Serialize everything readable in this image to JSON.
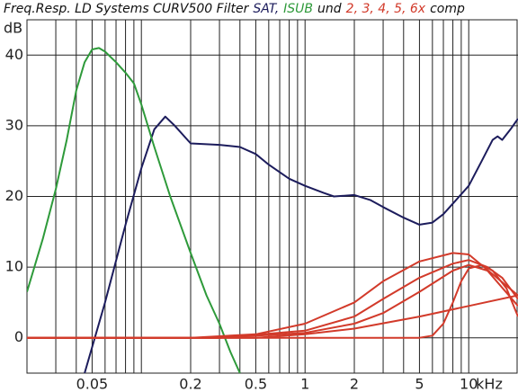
{
  "chart_data": {
    "type": "line",
    "title_parts": [
      {
        "text": "Freq.Resp. LD Systems CURV500 Filter",
        "color": "#111111"
      },
      {
        "text": "SAT,",
        "color": "#1c1c5c"
      },
      {
        "text": "ISUB",
        "color": "#2e9a3a"
      },
      {
        "text": "und",
        "color": "#111111"
      },
      {
        "text": "2, 3, 4, 5, 6x",
        "color": "#d23a2a"
      },
      {
        "text": "comp",
        "color": "#111111"
      }
    ],
    "y_label": "dB",
    "x_label": "kHz",
    "xscale": "log",
    "xlim": [
      0.02,
      20
    ],
    "ylim": [
      -5,
      45
    ],
    "xticks": [
      0.05,
      0.2,
      0.5,
      1,
      2,
      5,
      10
    ],
    "xgrid": [
      0.03,
      0.04,
      0.05,
      0.06,
      0.07,
      0.08,
      0.09,
      0.1,
      0.2,
      0.3,
      0.4,
      0.5,
      0.6,
      0.7,
      0.8,
      0.9,
      1,
      2,
      3,
      4,
      5,
      6,
      7,
      8,
      9,
      10
    ],
    "yticks": [
      0,
      10,
      20,
      30,
      40
    ],
    "grid": true,
    "series": [
      {
        "name": "SAT",
        "color": "#1c1c5c",
        "x": [
          0.045,
          0.06,
          0.08,
          0.1,
          0.12,
          0.14,
          0.16,
          0.2,
          0.3,
          0.4,
          0.5,
          0.6,
          0.8,
          1,
          1.3,
          1.5,
          2,
          2.5,
          3,
          4,
          5,
          6,
          7,
          8,
          10,
          12,
          14,
          15,
          16,
          18,
          20
        ],
        "values": [
          -5,
          5,
          16,
          24,
          29.5,
          31.3,
          30,
          27.5,
          27.3,
          27,
          26,
          24.5,
          22.5,
          21.5,
          20.5,
          20,
          20.2,
          19.5,
          18.5,
          17,
          16,
          16.3,
          17.5,
          19,
          21.5,
          25,
          28,
          28.5,
          28,
          29.5,
          31
        ]
      },
      {
        "name": "ISUB",
        "color": "#2e9a3a",
        "x": [
          0.02,
          0.025,
          0.03,
          0.035,
          0.04,
          0.045,
          0.05,
          0.055,
          0.06,
          0.07,
          0.08,
          0.09,
          0.1,
          0.12,
          0.15,
          0.2,
          0.25,
          0.3,
          0.35,
          0.4
        ],
        "values": [
          6.5,
          14,
          21,
          28,
          35,
          39,
          40.8,
          41,
          40.5,
          39,
          37.5,
          36,
          33,
          27,
          20,
          12,
          6,
          2,
          -2,
          -5
        ]
      },
      {
        "color": "#d23a2a",
        "x": [
          0.02,
          0.2,
          0.5,
          1,
          2,
          3,
          5,
          8,
          10,
          14,
          20
        ],
        "values": [
          0,
          0,
          0.5,
          2,
          5,
          8,
          10.8,
          12,
          11.8,
          9,
          6
        ]
      },
      {
        "color": "#d23a2a",
        "x": [
          0.02,
          0.3,
          1,
          2,
          3,
          5,
          8,
          10,
          13,
          16,
          20
        ],
        "values": [
          0,
          0,
          1,
          3,
          5.5,
          8.5,
          10.5,
          11,
          10,
          8.5,
          5.5
        ]
      },
      {
        "color": "#d23a2a",
        "x": [
          0.02,
          0.3,
          1,
          2,
          3,
          5,
          8,
          10,
          13,
          20
        ],
        "values": [
          0,
          0,
          0.7,
          2,
          3.5,
          6.5,
          9.5,
          10.3,
          9.5,
          4.5
        ]
      },
      {
        "color": "#d23a2a",
        "x": [
          0.02,
          0.5,
          1,
          2,
          5,
          10,
          20
        ],
        "values": [
          0,
          0,
          0.5,
          1.3,
          3,
          4.5,
          6
        ]
      },
      {
        "color": "#d23a2a",
        "x": [
          0.02,
          0.5,
          5,
          6,
          7,
          8,
          9,
          10,
          12,
          14,
          17,
          20
        ],
        "values": [
          0,
          0,
          0,
          0.3,
          2,
          5,
          8,
          9.8,
          10.3,
          9.5,
          7,
          3
        ]
      }
    ]
  }
}
